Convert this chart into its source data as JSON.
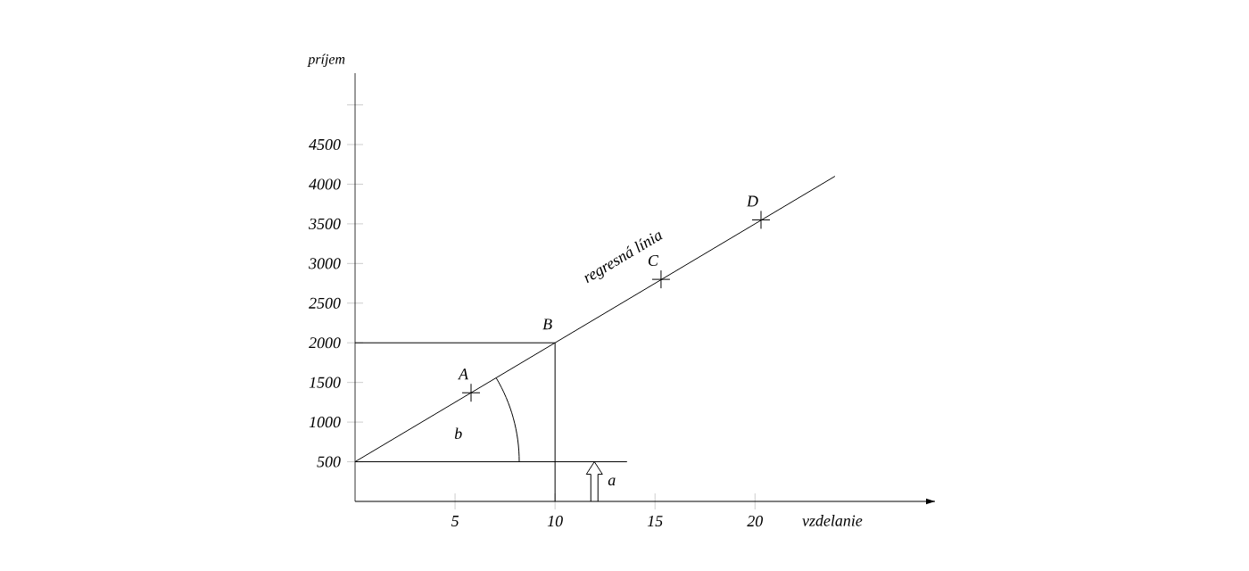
{
  "chart_data": {
    "type": "line",
    "xlabel": "vzdelanie",
    "ylabel": "príjem",
    "xlim": [
      0,
      29
    ],
    "ylim": [
      0,
      5400
    ],
    "xticks": [
      5,
      10,
      15,
      20
    ],
    "yticks": [
      500,
      1000,
      1500,
      2000,
      2500,
      3000,
      3500,
      4000,
      4500,
      {
        "value": 5000,
        "label": null
      }
    ],
    "series": [
      {
        "type": "line",
        "name": "regresná línia",
        "color": "#000000",
        "x": [
          0,
          24
        ],
        "values": [
          500,
          4100
        ],
        "marker": "none"
      },
      {
        "type": "line",
        "color": "#000000",
        "x": [
          0,
          10,
          10
        ],
        "values": [
          2000,
          2000,
          0
        ],
        "marker": "none",
        "value_labels": [
          null,
          "B",
          null
        ]
      },
      {
        "type": "line",
        "color": "#000000",
        "x": [
          0,
          13.6
        ],
        "values": [
          500,
          500
        ],
        "marker": "none"
      },
      {
        "type": "scatter",
        "color": "#000000",
        "x": [
          5.8,
          15.3,
          20.3
        ],
        "values": [
          1370,
          2800,
          3550
        ],
        "marker": "cross",
        "value_labels": [
          "A",
          "C",
          "D"
        ]
      }
    ],
    "annotations": [
      "b",
      "a"
    ]
  }
}
